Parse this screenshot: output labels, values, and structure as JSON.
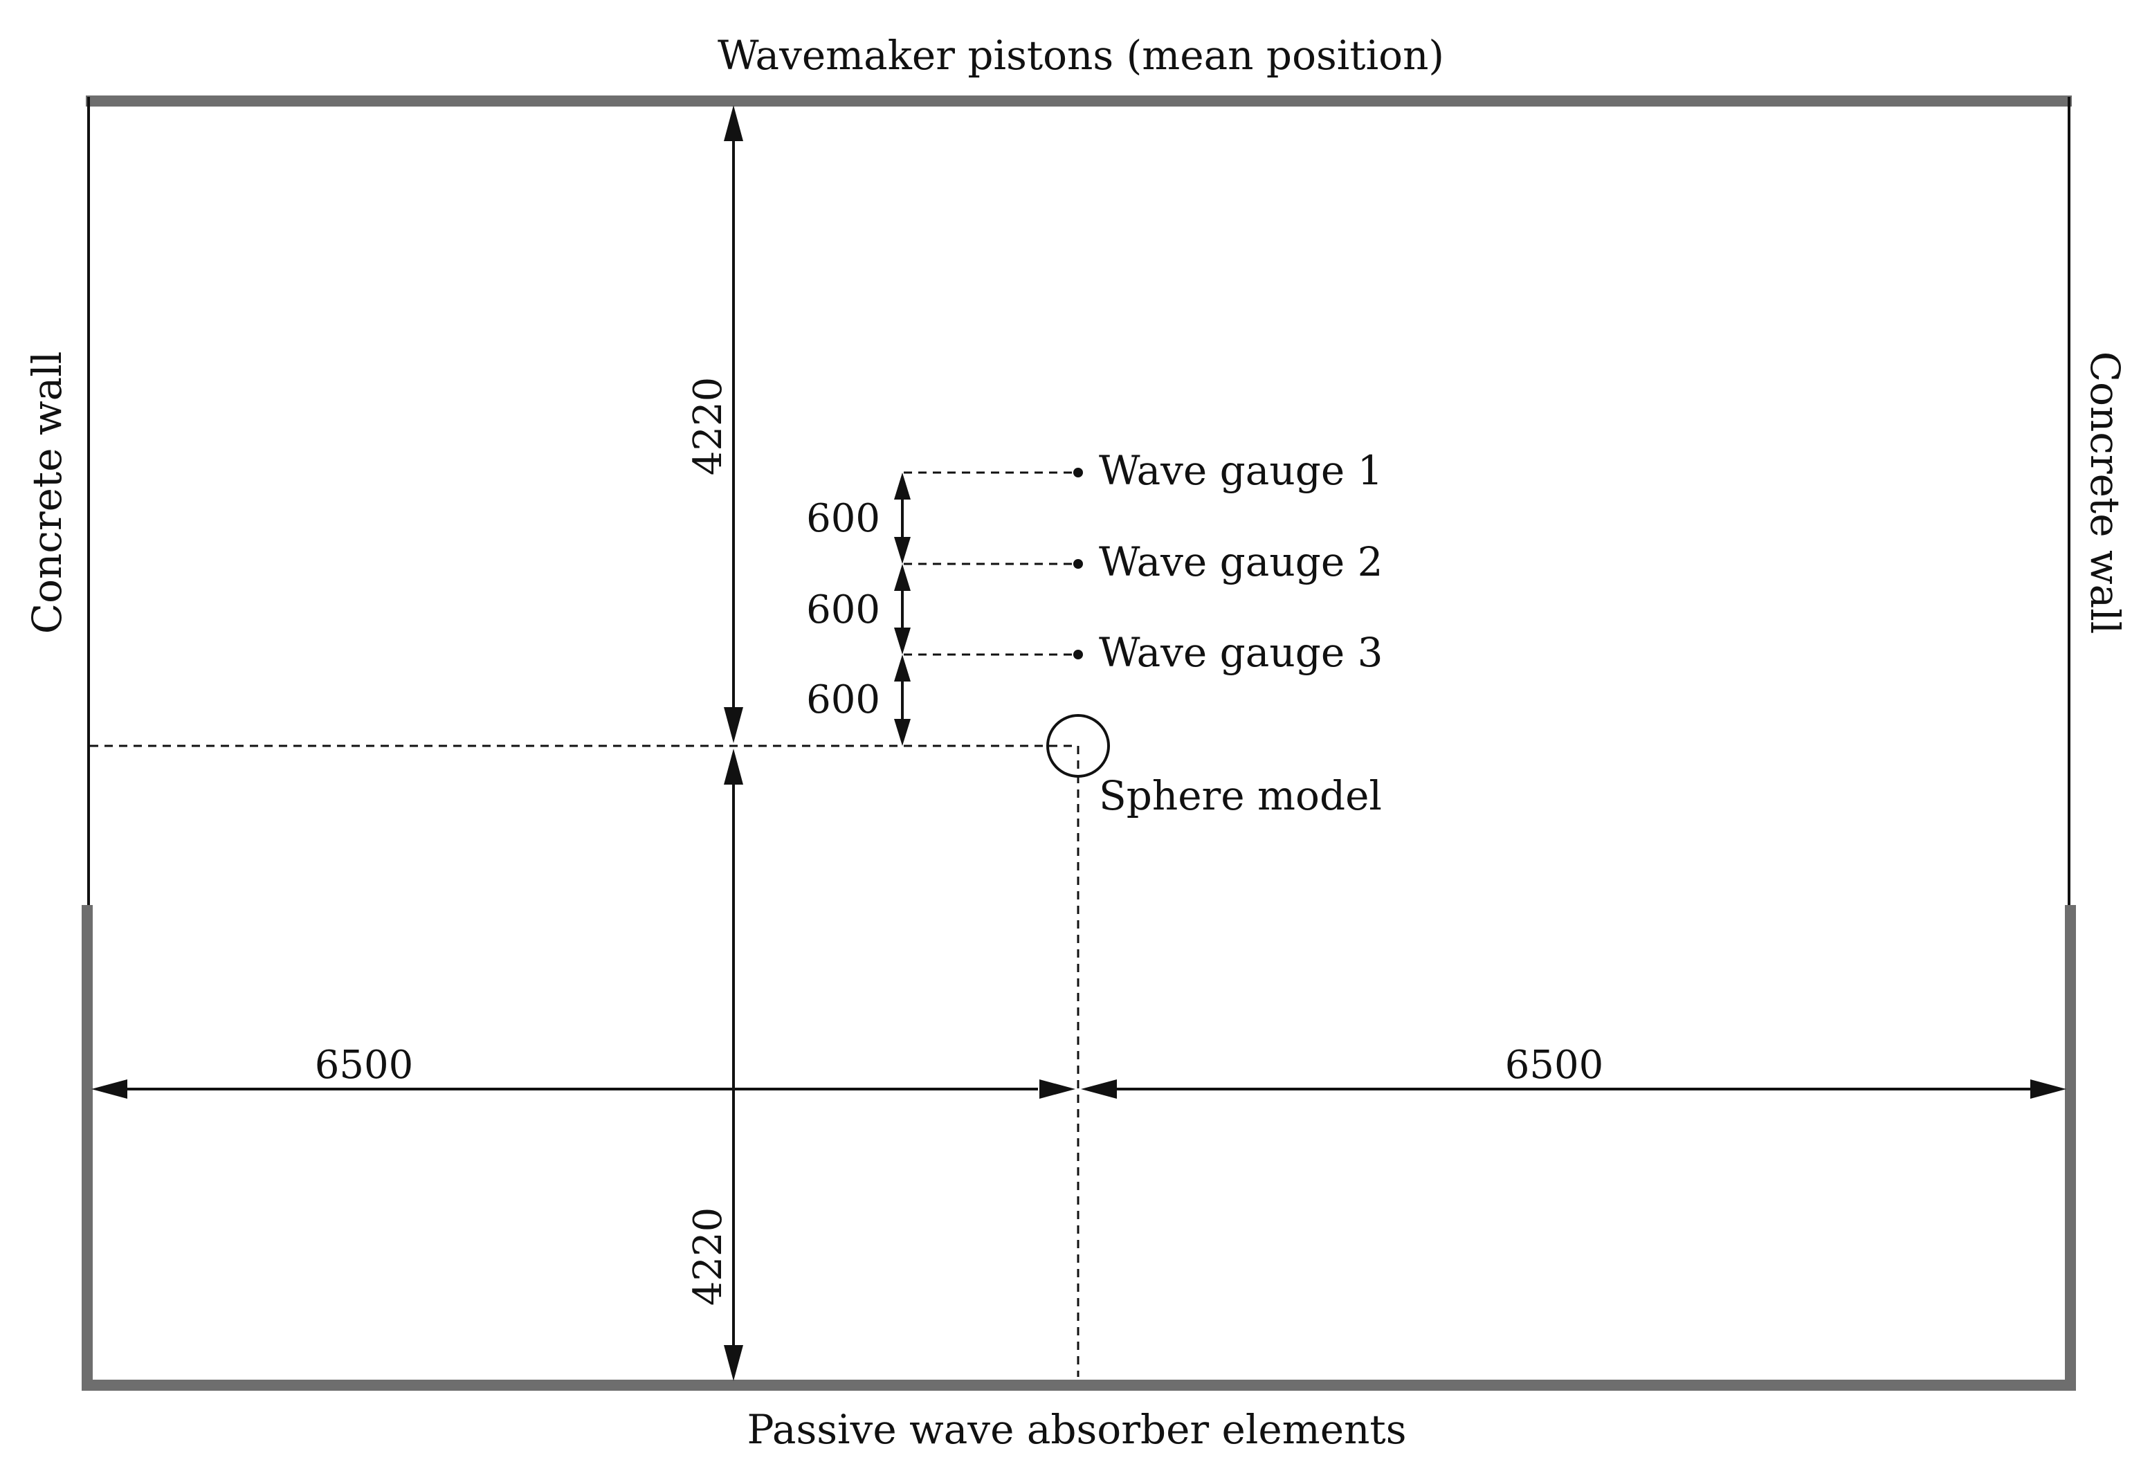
{
  "labels": {
    "top": "Wavemaker pistons (mean position)",
    "bottom": "Passive wave absorber elements",
    "left_wall": "Concrete wall",
    "right_wall": "Concrete wall",
    "sphere": "Sphere model",
    "gauge_1": "Wave gauge 1",
    "gauge_2": "Wave gauge 2",
    "gauge_3": "Wave gauge 3"
  },
  "dimensions": {
    "upper_vertical": "4220",
    "lower_vertical": "4220",
    "left_horizontal": "6500",
    "right_horizontal": "6500",
    "gauge_spacing_1": "600",
    "gauge_spacing_2": "600",
    "gauge_spacing_3": "600"
  },
  "colors": {
    "boundary": "#6e6e6e",
    "line": "#111111"
  }
}
